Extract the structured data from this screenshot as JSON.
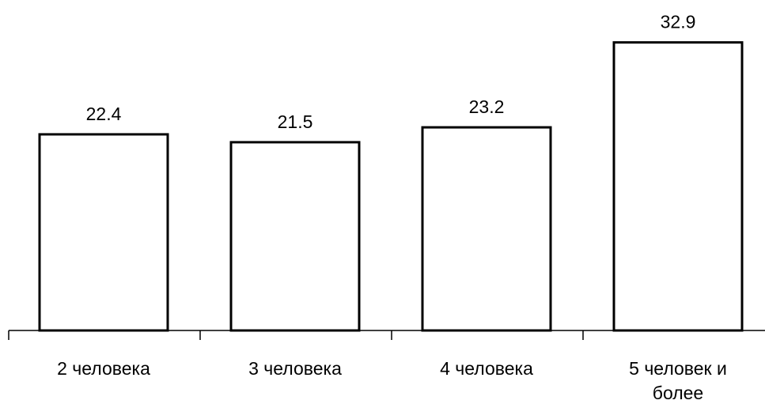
{
  "chart_data": {
    "type": "bar",
    "categories": [
      [
        "2 человека"
      ],
      [
        "3 человека"
      ],
      [
        "4 человека"
      ],
      [
        "5 человек и",
        "более"
      ]
    ],
    "values": [
      22.4,
      21.5,
      23.2,
      32.9
    ],
    "data_labels": [
      "22.4",
      "21.5",
      "23.2",
      "32.9"
    ],
    "title": "",
    "xlabel": "",
    "ylabel": "",
    "ylim": [
      0,
      33.5
    ],
    "grid": false,
    "legend": "none",
    "colors": {
      "bar_fill": "#ffffff",
      "bar_stroke": "#000000",
      "axis": "#000000"
    }
  }
}
